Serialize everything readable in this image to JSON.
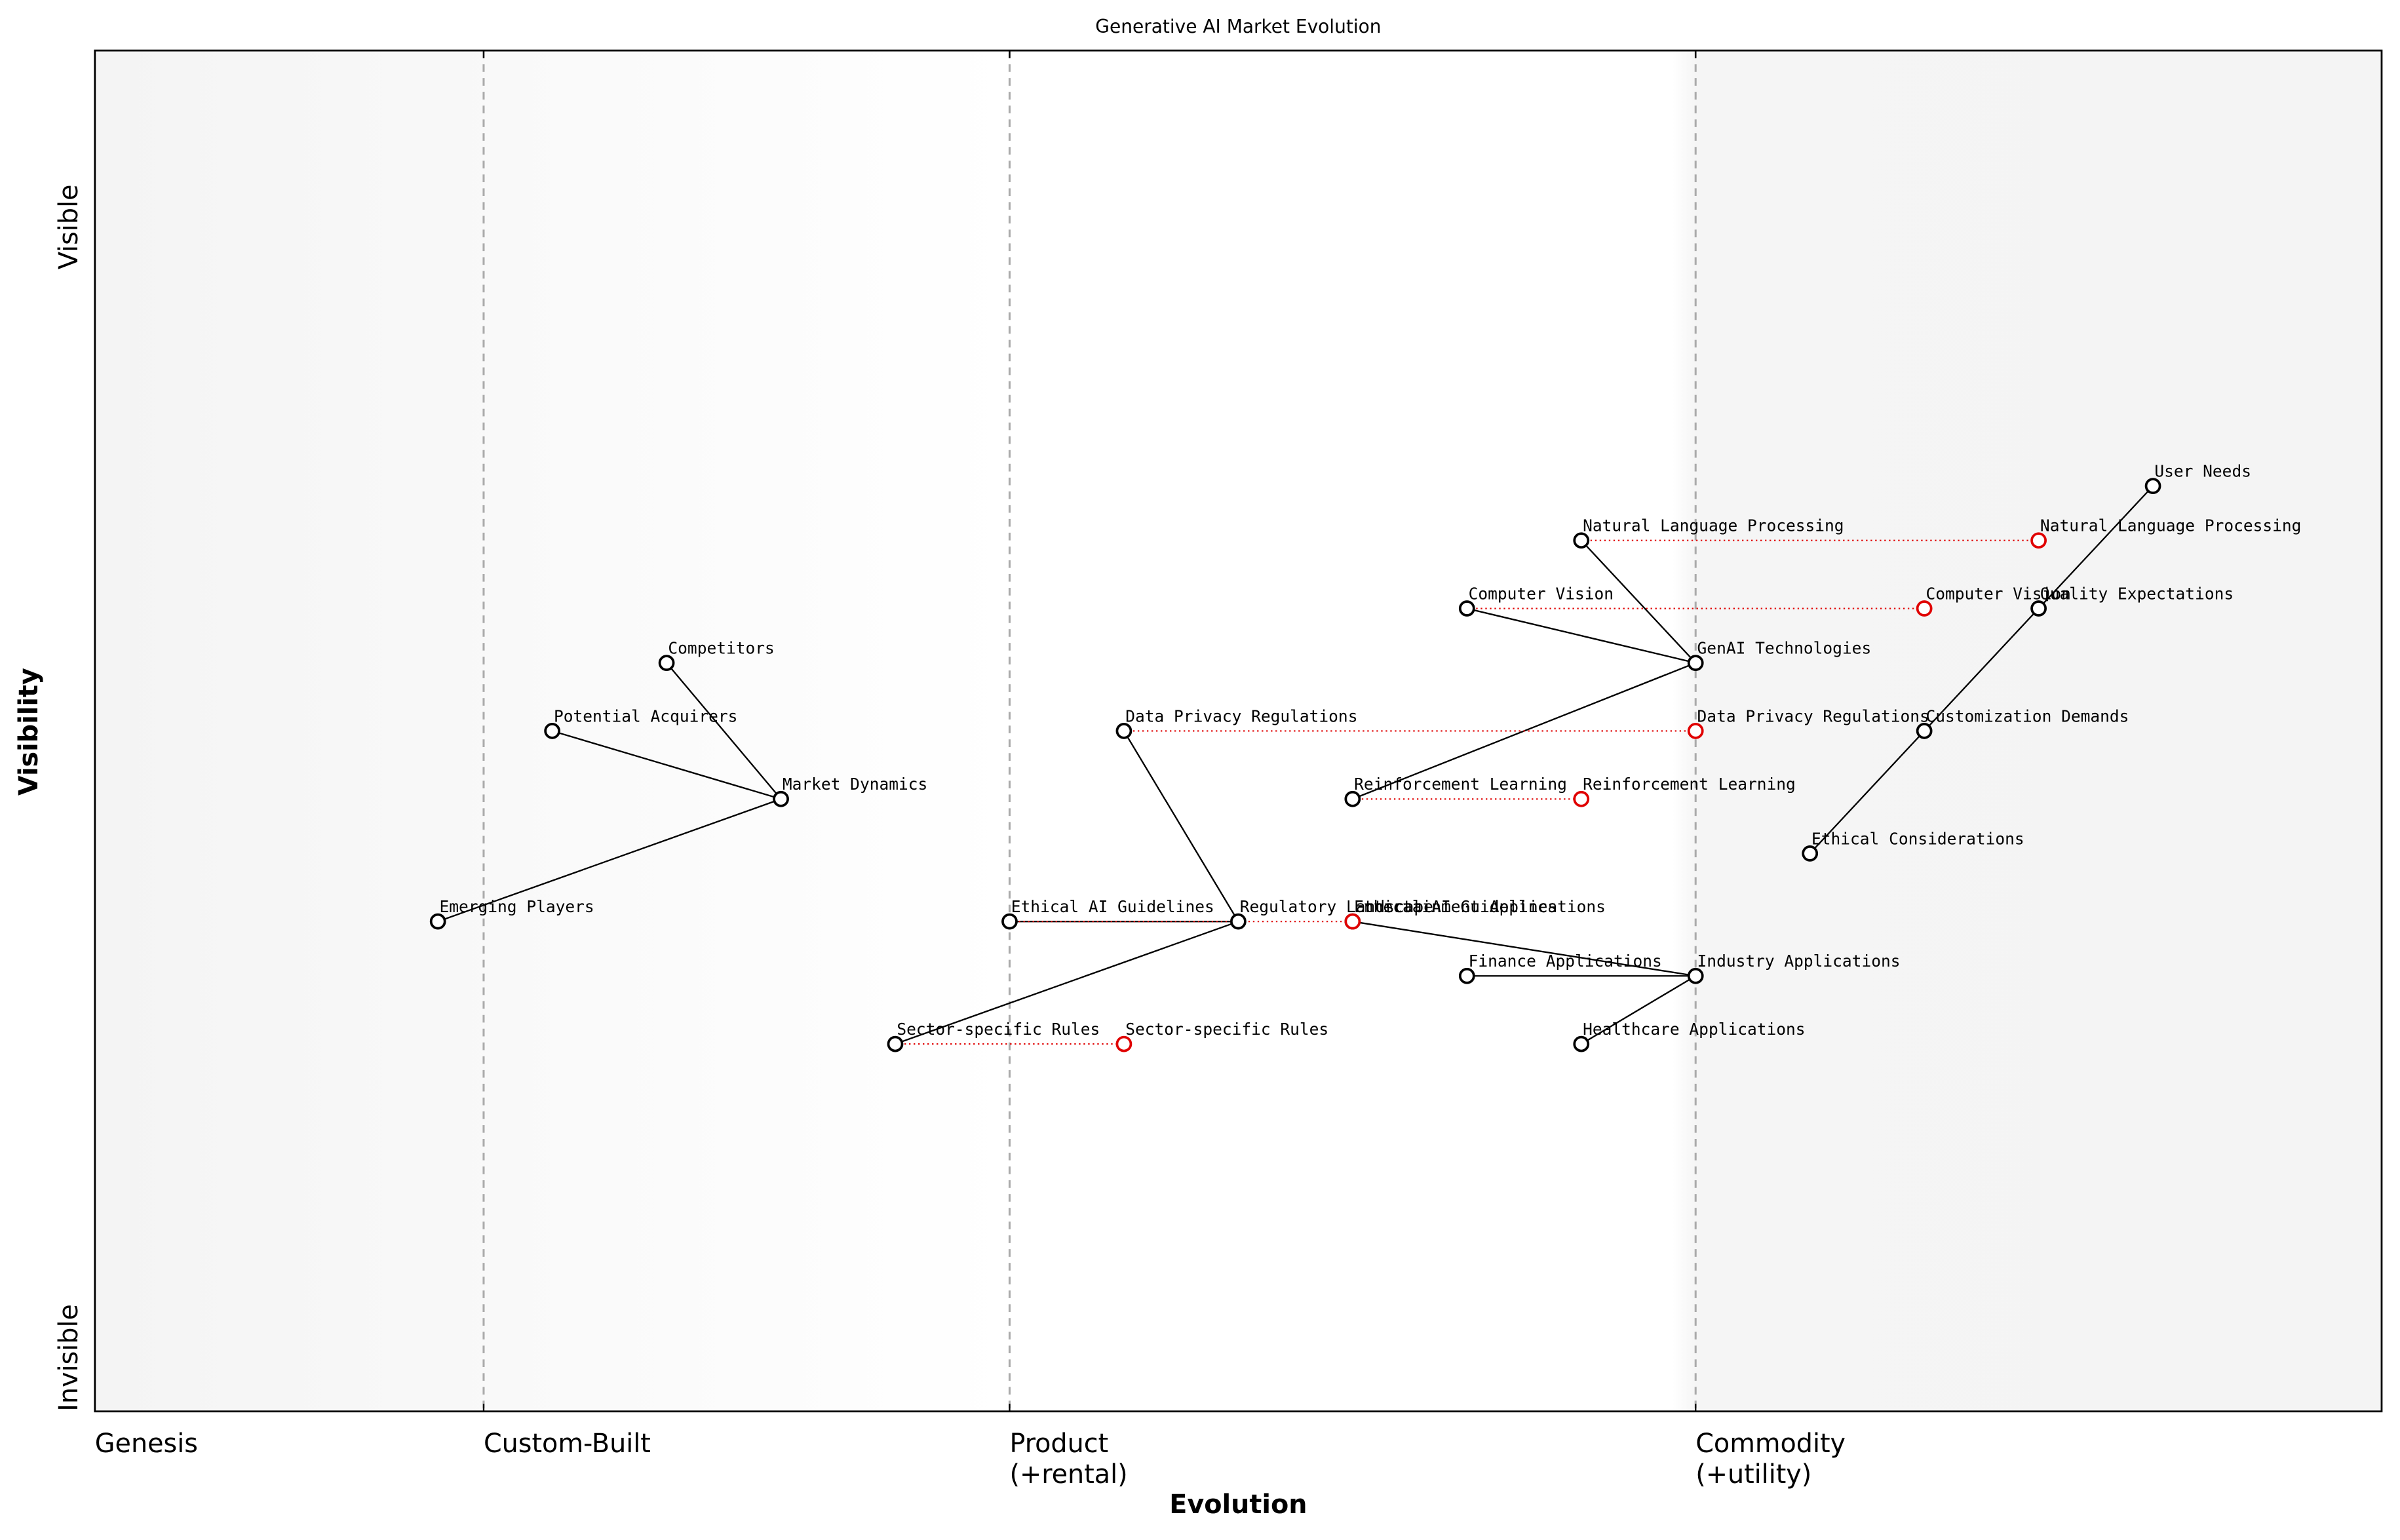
{
  "chart_data": {
    "type": "wardley",
    "title": "Generative AI Market Evolution",
    "x_label": "Evolution",
    "y_label": "Visibility",
    "y_top_label": "Visible",
    "y_bottom_label": "Invisible",
    "xlim": [
      0,
      1
    ],
    "ylim": [
      0,
      1
    ],
    "xticks": [
      {
        "value": 0,
        "label": [
          "Genesis"
        ]
      },
      {
        "value": 0.17,
        "label": [
          "Custom-Built"
        ]
      },
      {
        "value": 0.4,
        "label": [
          "Product",
          "(+rental)"
        ]
      },
      {
        "value": 0.7,
        "label": [
          "Commodity",
          "(+utility)"
        ]
      }
    ],
    "nodes": [
      {
        "name": "User Needs",
        "x": 0.9,
        "y": 0.68
      },
      {
        "name": "Quality Expectations",
        "x": 0.85,
        "y": 0.59
      },
      {
        "name": "Customization Demands",
        "x": 0.8,
        "y": 0.5
      },
      {
        "name": "Ethical Considerations",
        "x": 0.75,
        "y": 0.41
      },
      {
        "name": "GenAI Technologies",
        "x": 0.7,
        "y": 0.55
      },
      {
        "name": "Natural Language Processing",
        "x": 0.65,
        "y": 0.64
      },
      {
        "name": "Computer Vision",
        "x": 0.6,
        "y": 0.59
      },
      {
        "name": "Reinforcement Learning",
        "x": 0.55,
        "y": 0.45
      },
      {
        "name": "Regulatory Landscape",
        "x": 0.5,
        "y": 0.36
      },
      {
        "name": "Data Privacy Regulations",
        "x": 0.45,
        "y": 0.5
      },
      {
        "name": "Ethical AI Guidelines",
        "x": 0.4,
        "y": 0.36
      },
      {
        "name": "Sector-specific Rules",
        "x": 0.35,
        "y": 0.27
      },
      {
        "name": "Industry Applications",
        "x": 0.7,
        "y": 0.32
      },
      {
        "name": "Finance Applications",
        "x": 0.6,
        "y": 0.32
      },
      {
        "name": "Healthcare Applications",
        "x": 0.65,
        "y": 0.27
      },
      {
        "name": "Entertainment Applications",
        "x": 0.55,
        "y": 0.36
      },
      {
        "name": "Market Dynamics",
        "x": 0.3,
        "y": 0.45
      },
      {
        "name": "Competitors",
        "x": 0.25,
        "y": 0.55
      },
      {
        "name": "Potential Acquirers",
        "x": 0.2,
        "y": 0.5
      },
      {
        "name": "Emerging Players",
        "x": 0.15,
        "y": 0.36
      }
    ],
    "links": [
      [
        0,
        1
      ],
      [
        1,
        2
      ],
      [
        2,
        3
      ],
      [
        4,
        5
      ],
      [
        4,
        6
      ],
      [
        4,
        7
      ],
      [
        8,
        9
      ],
      [
        8,
        10
      ],
      [
        8,
        11
      ],
      [
        12,
        13
      ],
      [
        12,
        14
      ],
      [
        12,
        15
      ],
      [
        16,
        17
      ],
      [
        16,
        18
      ],
      [
        16,
        19
      ]
    ],
    "evolutions": [
      {
        "node": 5,
        "to": 0.85
      },
      {
        "node": 6,
        "to": 0.8
      },
      {
        "node": 9,
        "to": 0.7
      },
      {
        "node": 7,
        "to": 0.65
      },
      {
        "node": 10,
        "to": 0.55
      },
      {
        "node": 11,
        "to": 0.45
      }
    ],
    "node_color": "#000000",
    "evolution_color": "#e00000"
  }
}
